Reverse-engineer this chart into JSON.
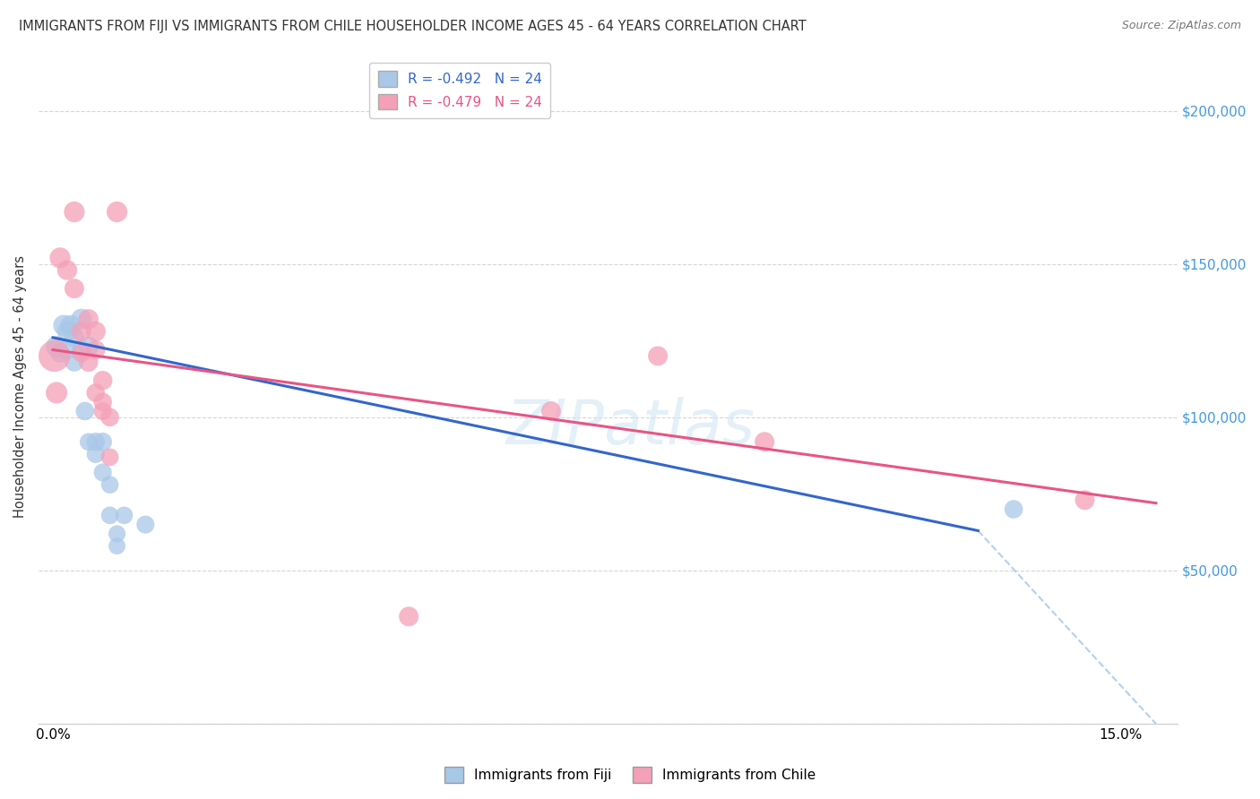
{
  "title": "IMMIGRANTS FROM FIJI VS IMMIGRANTS FROM CHILE HOUSEHOLDER INCOME AGES 45 - 64 YEARS CORRELATION CHART",
  "source": "Source: ZipAtlas.com",
  "ylabel": "Householder Income Ages 45 - 64 years",
  "ylim": [
    0,
    220000
  ],
  "xlim": [
    -0.002,
    0.158
  ],
  "ytick_positions": [
    0,
    50000,
    100000,
    150000,
    200000
  ],
  "ytick_labels_right": [
    "",
    "$50,000",
    "$100,000",
    "$150,000",
    "$200,000"
  ],
  "xtick_positions": [
    0.0,
    0.025,
    0.05,
    0.075,
    0.1,
    0.125,
    0.15
  ],
  "xtick_labels": [
    "0.0%",
    "",
    "",
    "",
    "",
    "",
    "15.0%"
  ],
  "fiji_color": "#a8c8e8",
  "chile_color": "#f4a0b8",
  "fiji_R": -0.492,
  "chile_R": -0.479,
  "fiji_N": 24,
  "chile_N": 24,
  "fiji_x": [
    0.0005,
    0.001,
    0.0015,
    0.002,
    0.002,
    0.0025,
    0.003,
    0.003,
    0.004,
    0.004,
    0.0045,
    0.005,
    0.005,
    0.006,
    0.006,
    0.007,
    0.007,
    0.008,
    0.008,
    0.009,
    0.009,
    0.01,
    0.013,
    0.135
  ],
  "fiji_y": [
    123000,
    121000,
    130000,
    128000,
    122000,
    130000,
    126000,
    118000,
    132000,
    122000,
    102000,
    123000,
    92000,
    88000,
    92000,
    82000,
    92000,
    78000,
    68000,
    62000,
    58000,
    68000,
    65000,
    70000
  ],
  "fiji_sizes": [
    300,
    250,
    280,
    260,
    240,
    270,
    260,
    230,
    280,
    250,
    220,
    260,
    200,
    210,
    220,
    210,
    220,
    200,
    200,
    190,
    185,
    200,
    210,
    220
  ],
  "chile_x": [
    0.0002,
    0.0005,
    0.001,
    0.002,
    0.003,
    0.003,
    0.004,
    0.004,
    0.005,
    0.005,
    0.006,
    0.006,
    0.006,
    0.007,
    0.007,
    0.007,
    0.008,
    0.008,
    0.009,
    0.05,
    0.07,
    0.085,
    0.1,
    0.145
  ],
  "chile_y": [
    120000,
    108000,
    152000,
    148000,
    167000,
    142000,
    128000,
    121000,
    132000,
    118000,
    128000,
    122000,
    108000,
    112000,
    105000,
    102000,
    100000,
    87000,
    167000,
    35000,
    102000,
    120000,
    92000,
    73000
  ],
  "chile_sizes": [
    650,
    300,
    280,
    260,
    280,
    250,
    250,
    230,
    260,
    240,
    260,
    240,
    220,
    240,
    220,
    210,
    220,
    200,
    280,
    250,
    250,
    250,
    250,
    250
  ],
  "fiji_line_x": [
    0.0,
    0.13
  ],
  "fiji_line_y": [
    126000,
    63000
  ],
  "chile_line_x": [
    0.0,
    0.155
  ],
  "chile_line_y": [
    122000,
    72000
  ],
  "dashed_line_x": [
    0.13,
    0.155
  ],
  "dashed_line_y": [
    63000,
    0
  ],
  "watermark_text": "ZIPatlas",
  "background_color": "#ffffff",
  "grid_color": "#cccccc",
  "right_label_color": "#4499dd",
  "fiji_line_color": "#3366cc",
  "chile_line_color": "#e85585",
  "fiji_label": "Immigrants from Fiji",
  "chile_label": "Immigrants from Chile"
}
